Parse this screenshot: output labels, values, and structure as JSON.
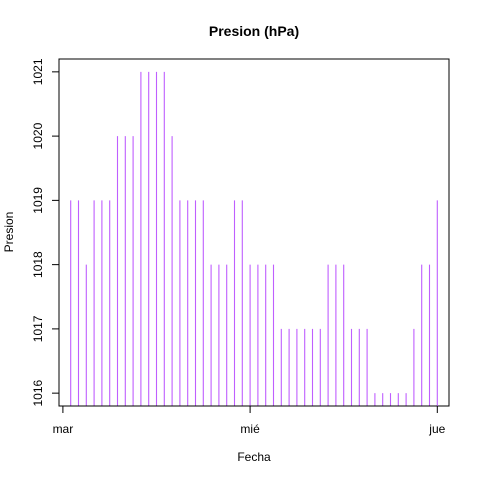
{
  "chart_data": {
    "type": "bar",
    "title": "Presion (hPa)",
    "xlabel": "Fecha",
    "ylabel": "Presion",
    "x_ticks": [
      {
        "label": "mar",
        "hours": 0
      },
      {
        "label": "mié",
        "hours": 24
      },
      {
        "label": "jue",
        "hours": 48
      }
    ],
    "xlim": [
      -0.5,
      49.5
    ],
    "ylim": [
      1015.8,
      1021.2
    ],
    "y_ticks": [
      1016,
      1017,
      1018,
      1019,
      1020,
      1021
    ],
    "series": [
      {
        "color": "#bf5fff",
        "x_hours": [
          1,
          2,
          3,
          4,
          5,
          6,
          7,
          8,
          9,
          10,
          11,
          12,
          13,
          14,
          15,
          16,
          17,
          18,
          19,
          20,
          21,
          22,
          23,
          24,
          25,
          26,
          27,
          28,
          29,
          30,
          31,
          32,
          33,
          34,
          35,
          36,
          37,
          38,
          39,
          40,
          41,
          42,
          43,
          44,
          45,
          46,
          47,
          48
        ],
        "values": [
          1019,
          1019,
          1018,
          1019,
          1019,
          1019,
          1020,
          1020,
          1020,
          1021,
          1021,
          1021,
          1021,
          1020,
          1019,
          1019,
          1019,
          1019,
          1018,
          1018,
          1018,
          1019,
          1019,
          1018,
          1018,
          1018,
          1018,
          1017,
          1017,
          1017,
          1017,
          1017,
          1017,
          1018,
          1018,
          1018,
          1017,
          1017,
          1017,
          1016,
          1016,
          1016,
          1016,
          1016,
          1017,
          1018,
          1018,
          1019
        ]
      }
    ],
    "grid": false,
    "legend": "none"
  }
}
